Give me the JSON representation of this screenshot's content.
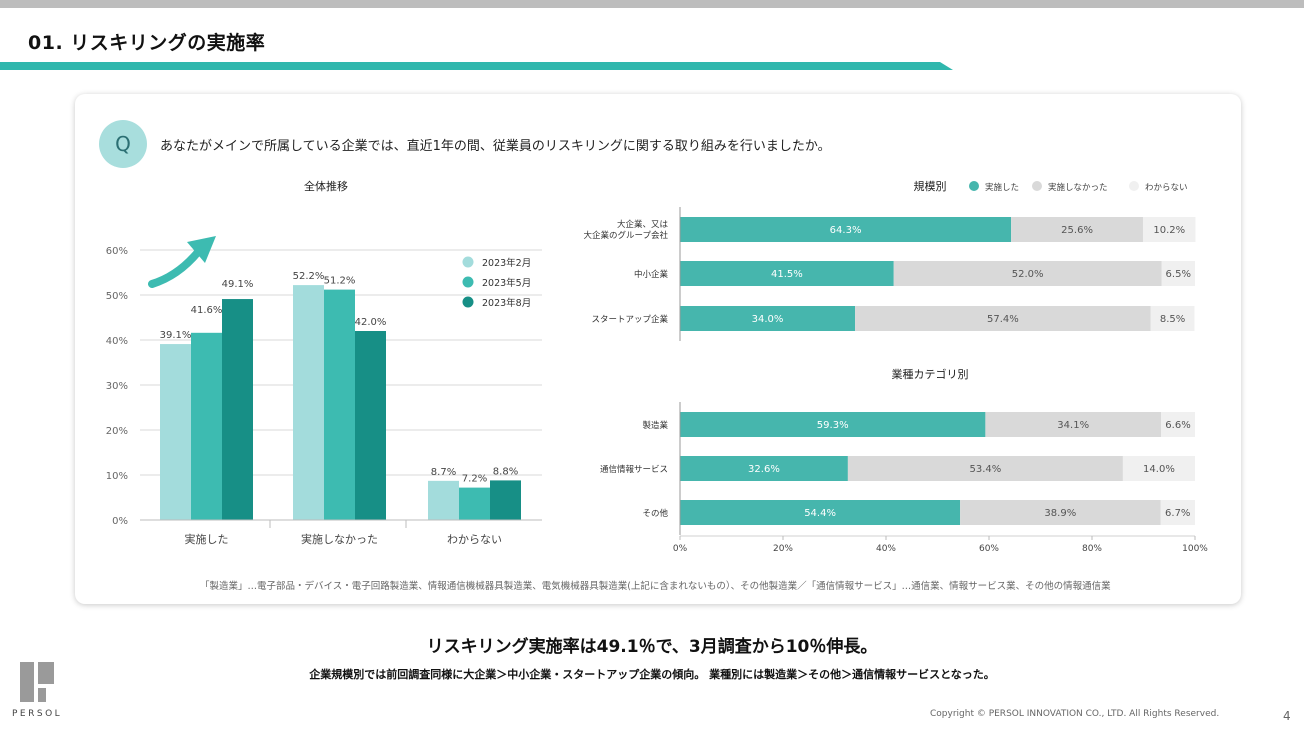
{
  "slide": {
    "title": "01. リスキリングの実施率",
    "question_badge": "Q",
    "question": "あなたがメインで所属している企業では、直近1年の間、従業員のリスキリングに関する取り組みを行いましたか。",
    "footnote": "「製造業」…電子部品・デバイス・電子回路製造業、情報通信機械器具製造業、電気機械器具製造業(上記に含まれないもの）、その他製造業／「通信情報サービス」…通信業、情報サービス業、その他の情報通信業",
    "headline": "リスキリング実施率は49.1％で、3月調査から10％伸長。",
    "subline": "企業規模別では前回調査同様に大企業＞中小企業・スタートアップ企業の傾向。 業種別には製造業＞その他＞通信情報サービスとなった。",
    "logo_text": "PERSOL",
    "copyright": "Copyright © PERSOL INNOVATION CO., LTD. All Rights Reserved.",
    "page_number": "4"
  },
  "colors": {
    "accent": "#2fb7ad",
    "feb": "#a3dcdc",
    "may": "#3dbbb1",
    "aug": "#178f86",
    "implemented": "#46b6ad",
    "not_implemented": "#d9d9d9",
    "unknown": "#f0f0f0"
  },
  "chart_data": [
    {
      "type": "bar",
      "title": "全体推移",
      "categories": [
        "実施した",
        "実施しなかった",
        "わからない"
      ],
      "series": [
        {
          "name": "2023年2月",
          "values": [
            39.1,
            52.2,
            8.7
          ],
          "labels": [
            "39.1%",
            "52.2%",
            "8.7%"
          ]
        },
        {
          "name": "2023年5月",
          "values": [
            41.6,
            51.2,
            7.2
          ],
          "labels": [
            "41.6%",
            "51.2%",
            "7.2%"
          ]
        },
        {
          "name": "2023年8月",
          "values": [
            49.1,
            42.0,
            8.8
          ],
          "labels": [
            "49.1%",
            "42.0%",
            "8.8%"
          ]
        }
      ],
      "yticks": [
        "0%",
        "10%",
        "20%",
        "30%",
        "40%",
        "50%",
        "60%"
      ],
      "ylim": [
        0,
        60
      ],
      "legend": "right",
      "grid": true
    },
    {
      "type": "bar",
      "orientation": "horizontal-stacked",
      "title": "規模別",
      "legend": [
        "実施した",
        "実施しなかった",
        "わからない"
      ],
      "categories": [
        "大企業、又は\n大企業のグループ会社",
        "中小企業",
        "スタートアップ企業"
      ],
      "series": [
        {
          "name": "実施した",
          "values": [
            64.3,
            41.5,
            34.0
          ],
          "labels": [
            "64.3%",
            "41.5%",
            "34.0%"
          ]
        },
        {
          "name": "実施しなかった",
          "values": [
            25.6,
            52.0,
            57.4
          ],
          "labels": [
            "25.6%",
            "52.0%",
            "57.4%"
          ]
        },
        {
          "name": "わからない",
          "values": [
            10.2,
            6.5,
            8.5
          ],
          "labels": [
            "10.2%",
            "6.5%",
            "8.5%"
          ]
        }
      ],
      "xlim": [
        0,
        100
      ]
    },
    {
      "type": "bar",
      "orientation": "horizontal-stacked",
      "title": "業種カテゴリ別",
      "categories": [
        "製造業",
        "通信情報サービス",
        "その他"
      ],
      "series": [
        {
          "name": "実施した",
          "values": [
            59.3,
            32.6,
            54.4
          ],
          "labels": [
            "59.3%",
            "32.6%",
            "54.4%"
          ]
        },
        {
          "name": "実施しなかった",
          "values": [
            34.1,
            53.4,
            38.9
          ],
          "labels": [
            "34.1%",
            "53.4%",
            "38.9%"
          ]
        },
        {
          "name": "わからない",
          "values": [
            6.6,
            14.0,
            6.7
          ],
          "labels": [
            "6.6%",
            "14.0%",
            "6.7%"
          ]
        }
      ],
      "xticks": [
        "0%",
        "20%",
        "40%",
        "60%",
        "80%",
        "100%"
      ],
      "xlim": [
        0,
        100
      ]
    }
  ]
}
